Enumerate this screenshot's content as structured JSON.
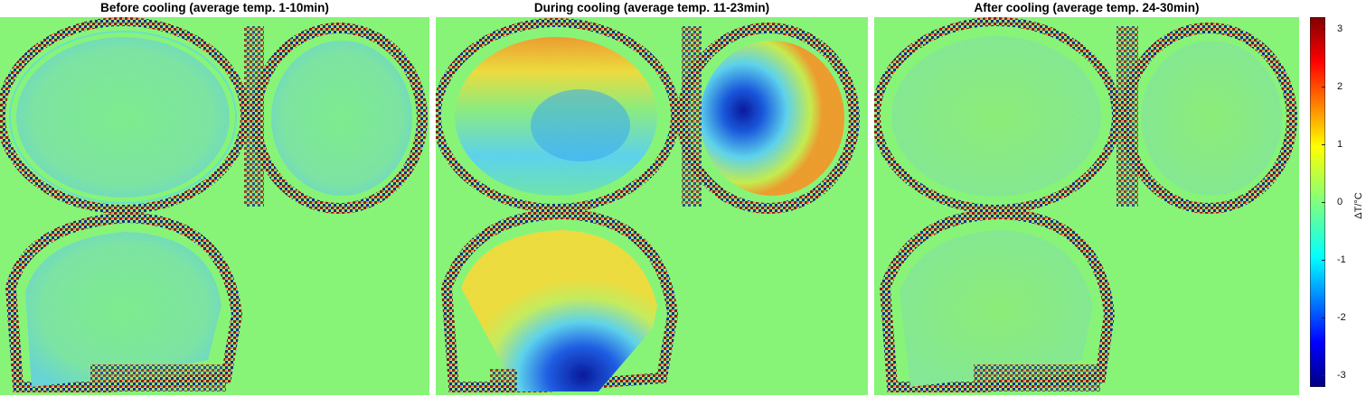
{
  "panels": [
    {
      "title": "Before cooling (average temp. 1-10min)"
    },
    {
      "title": "During cooling (average temp. 11-23min)"
    },
    {
      "title": "After cooling (average temp. 24-30min)"
    }
  ],
  "colorbar": {
    "label": "ΔT/°C",
    "ticks": [
      "3",
      "2",
      "1",
      "0",
      "-1",
      "-2",
      "-3"
    ],
    "range": [
      -3.2,
      3.2
    ],
    "colormap": "jet"
  },
  "colors": {
    "background_zero": "#87f478",
    "rim_dark_red": "#8b1a1a",
    "rim_dark_blue": "#1a2a8b",
    "cold": "#0a1a9e",
    "cyan": "#5fd6f0",
    "warm": "#f0c030"
  }
}
